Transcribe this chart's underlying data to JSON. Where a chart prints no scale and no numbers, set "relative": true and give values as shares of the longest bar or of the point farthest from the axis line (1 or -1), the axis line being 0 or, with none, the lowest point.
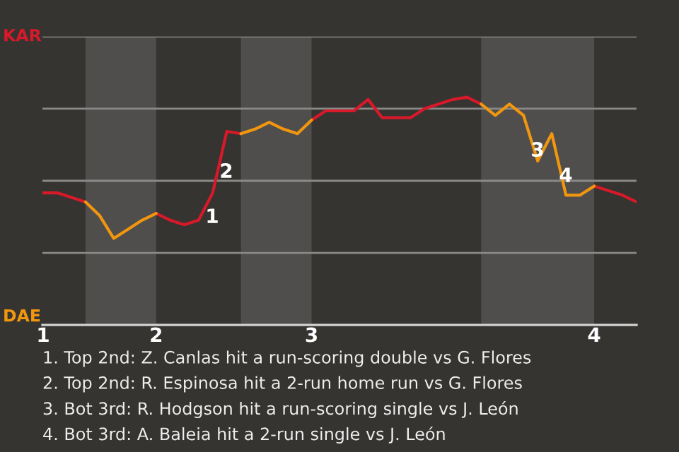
{
  "chart_data": {
    "type": "line",
    "relative": true,
    "categories": [
      "1",
      null,
      null,
      null,
      null,
      null,
      null,
      null,
      "2",
      null,
      null,
      null,
      null,
      null,
      null,
      null,
      null,
      null,
      null,
      "3",
      null,
      null,
      null,
      null,
      null,
      null,
      null,
      null,
      null,
      null,
      null,
      null,
      null,
      null,
      null,
      null,
      null,
      null,
      null,
      "4",
      null,
      null,
      null
    ],
    "grid": "y",
    "marker": "none",
    "line_style": "solid",
    "series": [
      {
        "color": "#d7192a",
        "values": [
          0.58,
          0.58,
          0.56,
          0.54,
          null,
          null,
          null,
          null,
          0.49,
          0.46,
          0.44,
          0.46,
          0.58,
          0.85,
          0.84,
          null,
          null,
          null,
          null,
          0.9,
          0.94,
          0.94,
          0.94,
          0.99,
          0.91,
          0.91,
          0.91,
          0.95,
          0.97,
          0.99,
          1,
          0.97,
          null,
          null,
          null,
          null,
          null,
          null,
          null,
          0.61,
          0.59,
          0.57,
          0.54
        ]
      },
      {
        "color": "#f0960f",
        "values": [
          null,
          null,
          null,
          0.54,
          0.48,
          0.38,
          0.42,
          0.46,
          0.49,
          null,
          null,
          null,
          null,
          null,
          0.84,
          0.86,
          0.89,
          0.86,
          0.84,
          0.9,
          null,
          null,
          null,
          null,
          null,
          null,
          null,
          null,
          null,
          null,
          null,
          0.97,
          0.92,
          0.97,
          0.92,
          0.72,
          0.84,
          0.57,
          0.57,
          0.61,
          null,
          null,
          null
        ]
      }
    ],
    "annotations": [
      "KAR",
      "DAE",
      "1",
      "2",
      "3",
      "4",
      "1. Top 2nd: Z. Canlas hit a run-scoring double vs G. Flores",
      "2. Top 2nd: R. Espinosa hit a 2-run home run vs G. Flores",
      "3. Bot 3rd: R. Hodgson hit a run-scoring single vs J. León",
      "4. Bot 3rd: A. Baleia hit a 2-run single vs J. León"
    ]
  }
}
